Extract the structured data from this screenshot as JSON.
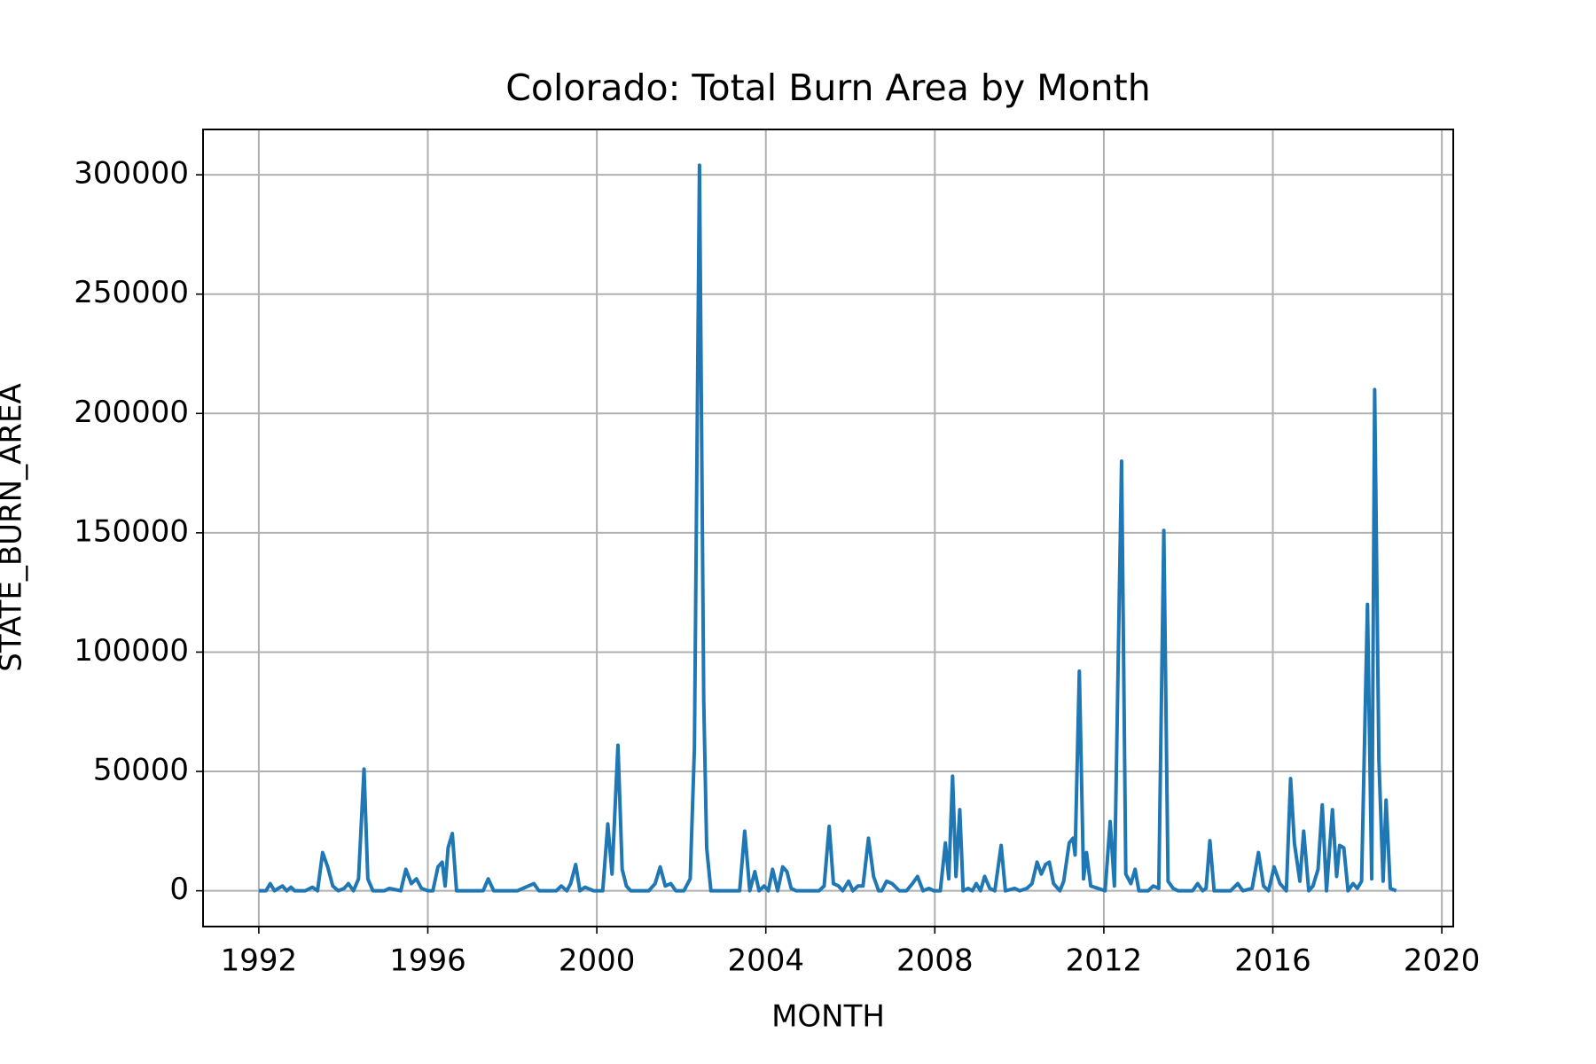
{
  "chart_data": {
    "type": "line",
    "title": "Colorado: Total Burn Area by Month",
    "xlabel": "MONTH",
    "ylabel": "STATE_BURN_AREA",
    "xlim": [
      1990.68,
      2020.27
    ],
    "xticks": [
      1992,
      1996,
      2000,
      2004,
      2008,
      2012,
      2016,
      2020
    ],
    "ylim": [
      -15000,
      319000
    ],
    "yticks": [
      0,
      50000,
      100000,
      150000,
      200000,
      250000,
      300000
    ],
    "grid": true,
    "x": [
      1992.0,
      1992.17,
      1992.27,
      1992.37,
      1992.46,
      1992.56,
      1992.66,
      1992.76,
      1992.85,
      1993.1,
      1993.27,
      1993.39,
      1993.51,
      1993.63,
      1993.75,
      1993.88,
      1994.02,
      1994.12,
      1994.24,
      1994.36,
      1994.49,
      1994.58,
      1994.7,
      1994.97,
      1995.09,
      1995.36,
      1995.48,
      1995.61,
      1995.73,
      1995.85,
      1996.0,
      1996.12,
      1996.24,
      1996.34,
      1996.41,
      1996.48,
      1996.58,
      1996.68,
      1997.31,
      1997.43,
      1997.56,
      1998.12,
      1998.51,
      1998.63,
      1999.04,
      1999.16,
      1999.29,
      1999.38,
      1999.5,
      1999.6,
      1999.72,
      1999.92,
      2000.14,
      2000.26,
      2000.36,
      2000.5,
      2000.6,
      2000.7,
      2000.8,
      2001.23,
      2001.38,
      2001.5,
      2001.62,
      2001.75,
      2001.87,
      2002.06,
      2002.21,
      2002.31,
      2002.43,
      2002.53,
      2002.6,
      2002.7,
      2003.38,
      2003.5,
      2003.62,
      2003.74,
      2003.84,
      2003.96,
      2004.06,
      2004.16,
      2004.28,
      2004.4,
      2004.5,
      2004.6,
      2004.72,
      2005.13,
      2005.26,
      2005.38,
      2005.5,
      2005.6,
      2005.72,
      2005.82,
      2005.96,
      2006.06,
      2006.18,
      2006.3,
      2006.43,
      2006.55,
      2006.67,
      2006.74,
      2006.86,
      2006.99,
      2007.16,
      2007.33,
      2007.47,
      2007.59,
      2007.72,
      2007.86,
      2007.98,
      2008.13,
      2008.25,
      2008.33,
      2008.42,
      2008.5,
      2008.59,
      2008.67,
      2008.79,
      2008.89,
      2008.98,
      2009.08,
      2009.18,
      2009.3,
      2009.42,
      2009.57,
      2009.67,
      2009.89,
      2010.01,
      2010.18,
      2010.3,
      2010.42,
      2010.52,
      2010.62,
      2010.71,
      2010.81,
      2010.96,
      2011.05,
      2011.18,
      2011.27,
      2011.32,
      2011.42,
      2011.52,
      2011.59,
      2011.69,
      2011.86,
      2012.03,
      2012.15,
      2012.25,
      2012.42,
      2012.52,
      2012.64,
      2012.74,
      2012.83,
      2013.05,
      2013.17,
      2013.3,
      2013.42,
      2013.52,
      2013.64,
      2013.76,
      2014.1,
      2014.22,
      2014.34,
      2014.42,
      2014.51,
      2014.61,
      2015.0,
      2015.17,
      2015.29,
      2015.51,
      2015.66,
      2015.78,
      2015.9,
      2016.03,
      2016.17,
      2016.32,
      2016.42,
      2016.51,
      2016.64,
      2016.73,
      2016.85,
      2016.95,
      2017.07,
      2017.17,
      2017.27,
      2017.41,
      2017.51,
      2017.58,
      2017.68,
      2017.78,
      2017.9,
      2018.0,
      2018.1,
      2018.24,
      2018.34,
      2018.41,
      2018.51,
      2018.61,
      2018.68,
      2018.78,
      2018.92
    ],
    "series": [
      {
        "color": "#1f77b4",
        "values": [
          0,
          0,
          3000,
          0,
          1000,
          2000,
          0,
          1500,
          0,
          0,
          1500,
          0,
          16000,
          10000,
          2000,
          0,
          1000,
          3000,
          0,
          5000,
          51000,
          5000,
          0,
          0,
          1000,
          0,
          9000,
          3000,
          5000,
          1000,
          0,
          0,
          10000,
          12000,
          2000,
          18000,
          24000,
          0,
          0,
          5000,
          0,
          0,
          3000,
          0,
          0,
          2000,
          0,
          3000,
          11000,
          0,
          1500,
          0,
          0,
          28000,
          7000,
          61000,
          9000,
          2000,
          0,
          0,
          3000,
          10000,
          2000,
          3000,
          0,
          0,
          5000,
          60000,
          304000,
          80000,
          18000,
          0,
          0,
          25000,
          0,
          8000,
          0,
          2000,
          0,
          9000,
          0,
          10000,
          8000,
          1000,
          0,
          0,
          0,
          2000,
          27000,
          3000,
          2000,
          0,
          4000,
          0,
          2000,
          2000,
          22000,
          6000,
          0,
          0,
          4000,
          3000,
          0,
          0,
          3000,
          6000,
          0,
          1000,
          0,
          0,
          20000,
          5000,
          48000,
          6000,
          34000,
          0,
          1000,
          0,
          3000,
          0,
          6000,
          1000,
          0,
          19000,
          0,
          1000,
          0,
          1000,
          3000,
          12000,
          7000,
          11000,
          12000,
          3000,
          0,
          4000,
          20000,
          22000,
          15000,
          92000,
          5000,
          16000,
          2000,
          1000,
          0,
          29000,
          2000,
          180000,
          7000,
          3000,
          9000,
          0,
          0,
          2000,
          1000,
          151000,
          4000,
          1000,
          0,
          0,
          3000,
          0,
          1000,
          21000,
          0,
          0,
          3000,
          0,
          1000,
          16000,
          2000,
          0,
          10000,
          3000,
          0,
          47000,
          20000,
          4000,
          25000,
          0,
          2000,
          9000,
          36000,
          0,
          34000,
          6000,
          19000,
          18000,
          0,
          3000,
          1000,
          4000,
          120000,
          5000,
          210000,
          55000,
          4000,
          38000,
          1000,
          0
        ]
      }
    ]
  }
}
